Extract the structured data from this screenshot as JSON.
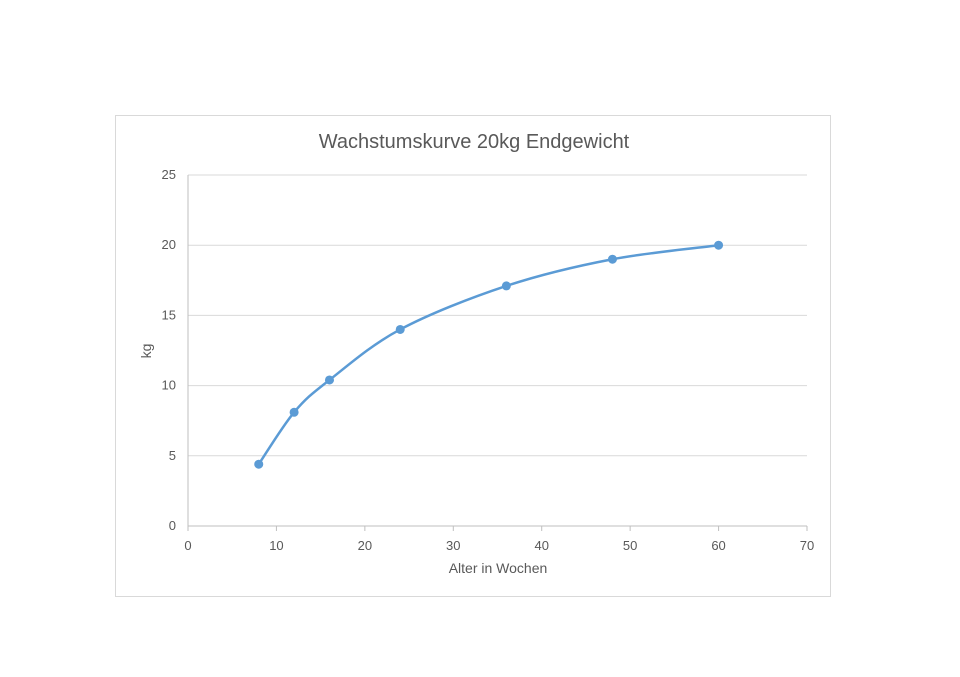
{
  "chart_data": {
    "type": "line",
    "title": "Wachstumskurve 20kg Endgewicht",
    "xlabel": "Alter in Wochen",
    "ylabel": "kg",
    "xlim": [
      0,
      70
    ],
    "ylim": [
      0,
      25
    ],
    "x_ticks": [
      0,
      10,
      20,
      30,
      40,
      50,
      60,
      70
    ],
    "y_ticks": [
      0,
      5,
      10,
      15,
      20,
      25
    ],
    "grid": "horizontal",
    "legend": "none",
    "series": [
      {
        "color": "#5b9bd5",
        "marker": "circle",
        "points": [
          {
            "x": 8,
            "y": 4.4
          },
          {
            "x": 12,
            "y": 8.1
          },
          {
            "x": 16,
            "y": 10.4
          },
          {
            "x": 24,
            "y": 14.0
          },
          {
            "x": 36,
            "y": 17.1
          },
          {
            "x": 48,
            "y": 19.0
          },
          {
            "x": 60,
            "y": 20.0
          }
        ]
      }
    ]
  },
  "colors": {
    "gridline": "#d9d9d9",
    "axis": "#bfbfbf",
    "text": "#595959",
    "frame": "#d9d9d9"
  }
}
